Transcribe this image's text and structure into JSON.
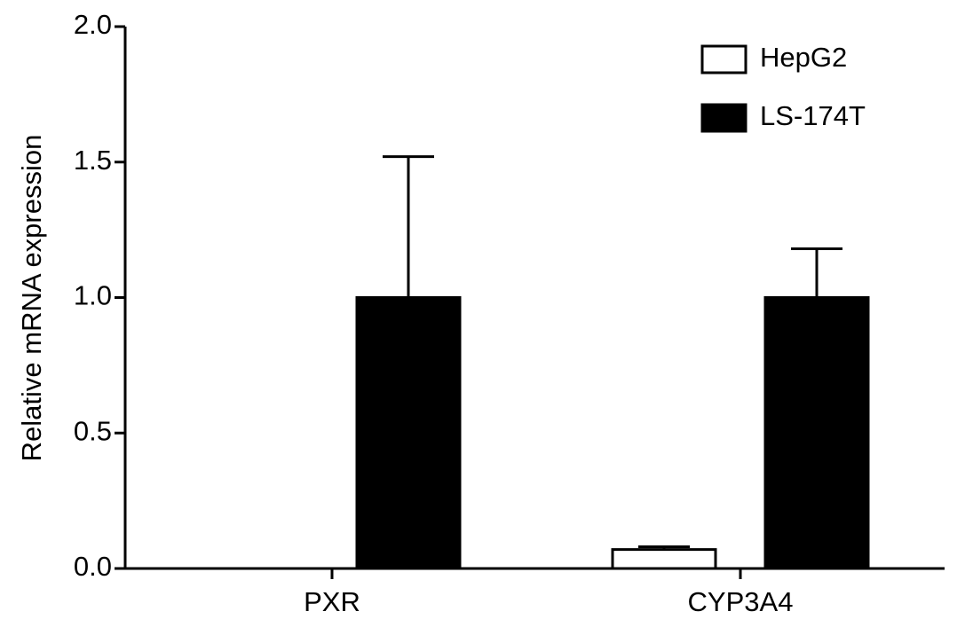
{
  "chart_data": {
    "type": "bar",
    "y_label": "Relative mRNA expression",
    "categories": [
      "PXR",
      "CYP3A4"
    ],
    "series": [
      {
        "name": "HepG2",
        "color": "#ffffff",
        "values": [
          0,
          0.07
        ],
        "errors": [
          0,
          0.01
        ]
      },
      {
        "name": "LS-174T",
        "color": "#000000",
        "values": [
          1.0,
          1.0
        ],
        "errors": [
          0.52,
          0.18
        ]
      }
    ],
    "ylim": [
      0,
      2.0
    ],
    "yticks": [
      {
        "value": 0,
        "label": "0.0"
      },
      {
        "value": 0.5,
        "label": "0.5"
      },
      {
        "value": 1.0,
        "label": "1.0"
      },
      {
        "value": 1.5,
        "label": "1.5"
      },
      {
        "value": 2.0,
        "label": "2.0"
      }
    ],
    "legend": "top-right"
  }
}
